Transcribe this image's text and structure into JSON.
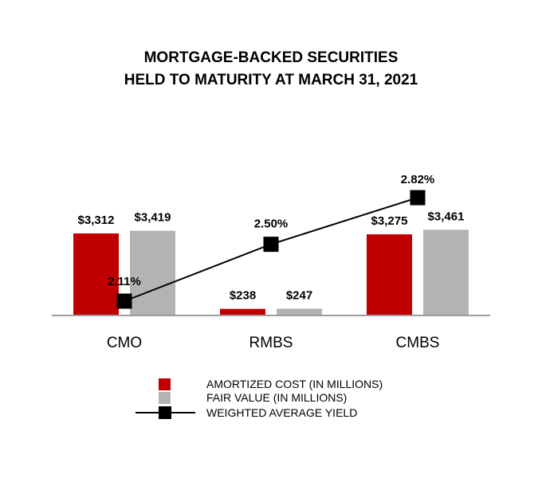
{
  "chart_data": {
    "type": "bar",
    "title_lines": [
      "MORTGAGE-BACKED SECURITIES",
      "HELD TO MATURITY AT MARCH 31, 2021"
    ],
    "categories": [
      "CMO",
      "RMBS",
      "CMBS"
    ],
    "series": [
      {
        "name": "AMORTIZED COST (IN MILLIONS)",
        "type": "bar",
        "color": "#c00000",
        "values": [
          3312,
          238,
          3275
        ],
        "labels": [
          "$3,312",
          "$238",
          "$3,275"
        ]
      },
      {
        "name": "FAIR VALUE (IN MILLIONS)",
        "type": "bar",
        "color": "#b3b3b3",
        "values": [
          3419,
          247,
          3461
        ],
        "labels": [
          "$3,419",
          "$247",
          "$3,461"
        ]
      },
      {
        "name": "WEIGHTED AVERAGE YIELD",
        "type": "line",
        "color": "#000000",
        "values": [
          2.11,
          2.5,
          2.82
        ],
        "labels": [
          "2.11%",
          "2.50%",
          "2.82%"
        ]
      }
    ],
    "legend_position": "bottom",
    "grid": false
  }
}
